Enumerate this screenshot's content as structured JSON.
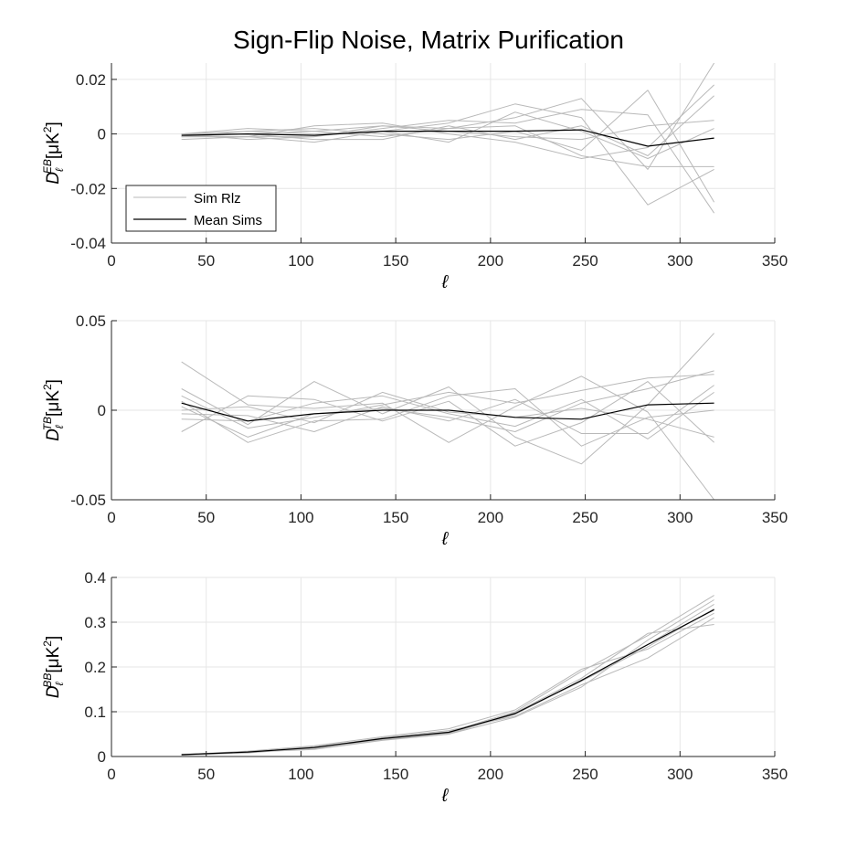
{
  "figure": {
    "title": "Sign-Flip Noise, Matrix Purification"
  },
  "colors": {
    "sim": "#b9b9b9",
    "mean": "#000000",
    "grid": "#e6e6e6",
    "axis": "#262626"
  },
  "chart_data": [
    {
      "type": "line",
      "panel": "EB",
      "ylabel": "D_ℓ^{EB} [μK²]",
      "ylabel_main": "D",
      "ylabel_sub": "ℓ",
      "ylabel_sup": "EB",
      "ylabel_unit": "[μK",
      "ylabel_unit_sup": "2",
      "ylabel_close": "]",
      "xlabel": "ℓ",
      "xlim": [
        0,
        350
      ],
      "ylim": [
        -0.04,
        0.026
      ],
      "xticks": [
        0,
        50,
        100,
        150,
        200,
        250,
        300,
        350
      ],
      "xtick_labels": [
        "0",
        "50",
        "100",
        "150",
        "200",
        "250",
        "300",
        "350"
      ],
      "yticks": [
        -0.04,
        -0.02,
        0,
        0.02
      ],
      "ytick_labels": [
        "-0.04",
        "-0.02",
        "0",
        "0.02"
      ],
      "grid": true,
      "legend": {
        "placement": "lower-left",
        "entries": [
          "Sim Rlz",
          "Mean Sims"
        ]
      },
      "x": [
        37,
        72,
        107,
        143,
        178,
        213,
        248,
        283,
        318
      ],
      "series": [
        {
          "kind": "sim",
          "values": [
            -0.002,
            -0.001,
            -0.003,
            0.001,
            0.004,
            0.011,
            0.006,
            -0.026,
            -0.013
          ]
        },
        {
          "kind": "sim",
          "values": [
            0.0,
            0.002,
            0.001,
            0.003,
            0.002,
            0.006,
            0.013,
            -0.013,
            0.026
          ]
        },
        {
          "kind": "sim",
          "values": [
            -0.001,
            -0.001,
            0.003,
            0.004,
            0.0,
            -0.003,
            -0.009,
            -0.005,
            0.018
          ]
        },
        {
          "kind": "sim",
          "values": [
            -0.001,
            0.001,
            0.002,
            0.0,
            -0.002,
            0.001,
            -0.006,
            0.016,
            -0.025
          ]
        },
        {
          "kind": "sim",
          "values": [
            0.0,
            -0.002,
            -0.001,
            0.002,
            0.005,
            0.004,
            0.009,
            0.007,
            -0.029
          ]
        },
        {
          "kind": "sim",
          "values": [
            -0.001,
            0.0,
            -0.002,
            -0.002,
            0.003,
            -0.002,
            0.003,
            -0.008,
            0.014
          ]
        },
        {
          "kind": "sim",
          "values": [
            0.0,
            0.001,
            0.0,
            0.001,
            -0.003,
            0.008,
            0.001,
            -0.009,
            0.002
          ]
        },
        {
          "kind": "sim",
          "values": [
            -0.001,
            -0.001,
            -0.001,
            0.003,
            0.001,
            -0.001,
            -0.002,
            0.003,
            0.005
          ]
        },
        {
          "kind": "sim",
          "values": [
            0.0,
            0.0,
            0.001,
            -0.001,
            0.002,
            0.003,
            -0.008,
            -0.012,
            -0.012
          ]
        },
        {
          "kind": "mean",
          "name": "Mean Sims",
          "values": [
            -0.0005,
            0.0,
            -0.0005,
            0.001,
            0.001,
            0.001,
            0.0015,
            -0.0045,
            -0.0015
          ]
        }
      ]
    },
    {
      "type": "line",
      "panel": "TB",
      "ylabel": "D_ℓ^{TB} [μK²]",
      "ylabel_main": "D",
      "ylabel_sub": "ℓ",
      "ylabel_sup": "TB",
      "ylabel_unit": "[μK",
      "ylabel_unit_sup": "2",
      "ylabel_close": "]",
      "xlabel": "ℓ",
      "xlim": [
        0,
        350
      ],
      "ylim": [
        -0.05,
        0.05
      ],
      "xticks": [
        0,
        50,
        100,
        150,
        200,
        250,
        300,
        350
      ],
      "xtick_labels": [
        "0",
        "50",
        "100",
        "150",
        "200",
        "250",
        "300",
        "350"
      ],
      "yticks": [
        -0.05,
        0,
        0.05
      ],
      "ytick_labels": [
        "-0.05",
        "0",
        "0.05"
      ],
      "grid": true,
      "x": [
        37,
        72,
        107,
        143,
        178,
        213,
        248,
        283,
        318
      ],
      "series": [
        {
          "kind": "sim",
          "values": [
            0.027,
            0.003,
            0.001,
            0.004,
            -0.018,
            0.002,
            0.019,
            -0.001,
            -0.05
          ]
        },
        {
          "kind": "sim",
          "values": [
            0.012,
            -0.008,
            0.016,
            -0.002,
            0.013,
            -0.015,
            -0.03,
            0.003,
            0.043
          ]
        },
        {
          "kind": "sim",
          "values": [
            0.008,
            -0.01,
            -0.004,
            0.003,
            0.01,
            0.004,
            0.011,
            0.018,
            0.02
          ]
        },
        {
          "kind": "sim",
          "values": [
            0.002,
            -0.015,
            -0.002,
            0.001,
            -0.004,
            -0.012,
            0.004,
            0.012,
            0.022
          ]
        },
        {
          "kind": "sim",
          "values": [
            -0.005,
            -0.006,
            0.004,
            0.008,
            -0.002,
            -0.009,
            0.006,
            -0.016,
            0.01
          ]
        },
        {
          "kind": "sim",
          "values": [
            -0.012,
            0.008,
            0.006,
            -0.006,
            0.005,
            -0.02,
            -0.007,
            0.016,
            -0.018
          ]
        },
        {
          "kind": "sim",
          "values": [
            0.005,
            -0.018,
            -0.006,
            -0.005,
            0.008,
            0.012,
            -0.02,
            -0.004,
            0.0
          ]
        },
        {
          "kind": "sim",
          "values": [
            -0.002,
            -0.003,
            -0.012,
            0.002,
            -0.006,
            0.006,
            -0.013,
            -0.013,
            0.014
          ]
        },
        {
          "kind": "sim",
          "values": [
            0.0,
            0.002,
            -0.007,
            0.01,
            -0.001,
            -0.004,
            0.001,
            -0.005,
            -0.015
          ]
        },
        {
          "kind": "mean",
          "name": "Mean Sims",
          "values": [
            0.004,
            -0.006,
            -0.002,
            0.0,
            0.0,
            -0.004,
            -0.005,
            0.003,
            0.004
          ]
        }
      ]
    },
    {
      "type": "line",
      "panel": "BB",
      "ylabel": "D_ℓ^{BB} [μK²]",
      "ylabel_main": "D",
      "ylabel_sub": "ℓ",
      "ylabel_sup": "BB",
      "ylabel_unit": "[μK",
      "ylabel_unit_sup": "2",
      "ylabel_close": "]",
      "xlabel": "ℓ",
      "xlim": [
        0,
        350
      ],
      "ylim": [
        0,
        0.4
      ],
      "xticks": [
        0,
        50,
        100,
        150,
        200,
        250,
        300,
        350
      ],
      "xtick_labels": [
        "0",
        "50",
        "100",
        "150",
        "200",
        "250",
        "300",
        "350"
      ],
      "yticks": [
        0,
        0.1,
        0.2,
        0.3,
        0.4
      ],
      "ytick_labels": [
        "0",
        "0.1",
        "0.2",
        "0.3",
        "0.4"
      ],
      "grid": true,
      "x": [
        37,
        72,
        107,
        143,
        178,
        213,
        248,
        283,
        318
      ],
      "series": [
        {
          "kind": "sim",
          "values": [
            0.004,
            0.01,
            0.022,
            0.04,
            0.055,
            0.1,
            0.19,
            0.27,
            0.36
          ]
        },
        {
          "kind": "sim",
          "values": [
            0.003,
            0.011,
            0.018,
            0.038,
            0.052,
            0.094,
            0.17,
            0.25,
            0.34
          ]
        },
        {
          "kind": "sim",
          "values": [
            0.005,
            0.009,
            0.02,
            0.042,
            0.058,
            0.09,
            0.16,
            0.22,
            0.31
          ]
        },
        {
          "kind": "sim",
          "values": [
            0.004,
            0.01,
            0.016,
            0.036,
            0.05,
            0.098,
            0.175,
            0.275,
            0.295
          ]
        },
        {
          "kind": "sim",
          "values": [
            0.004,
            0.012,
            0.024,
            0.044,
            0.062,
            0.104,
            0.195,
            0.24,
            0.32
          ]
        },
        {
          "kind": "sim",
          "values": [
            0.003,
            0.008,
            0.019,
            0.037,
            0.05,
            0.088,
            0.155,
            0.26,
            0.35
          ]
        },
        {
          "kind": "sim",
          "values": [
            0.004,
            0.01,
            0.021,
            0.039,
            0.054,
            0.096,
            0.168,
            0.245,
            0.33
          ]
        },
        {
          "kind": "mean",
          "name": "Mean Sims",
          "values": [
            0.004,
            0.01,
            0.02,
            0.04,
            0.054,
            0.096,
            0.17,
            0.25,
            0.328
          ]
        }
      ]
    }
  ]
}
